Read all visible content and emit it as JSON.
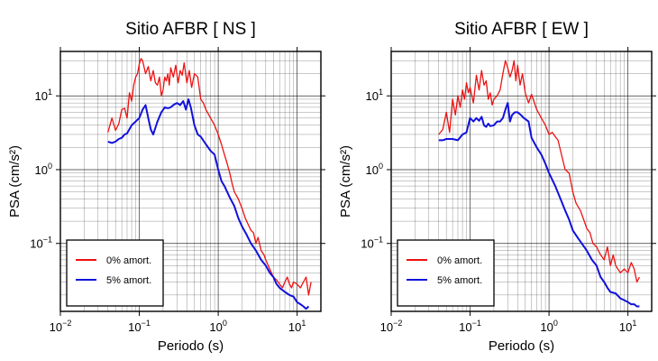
{
  "chart_data": [
    {
      "type": "line",
      "title": "Sitio AFBR [ NS ]",
      "xlabel": "Periodo (s)",
      "ylabel": "PSA (cm/s²)",
      "xscale": "log",
      "yscale": "log",
      "xlim": [
        0.01,
        20
      ],
      "ylim": [
        0.012,
        40
      ],
      "xticks": [
        {
          "base": "10",
          "exp": "−2",
          "value": 0.01
        },
        {
          "base": "10",
          "exp": "−1",
          "value": 0.1
        },
        {
          "base": "10",
          "exp": "0",
          "value": 1
        },
        {
          "base": "10",
          "exp": "1",
          "value": 10
        }
      ],
      "yticks": [
        {
          "base": "10",
          "exp": "−1",
          "value": 0.1
        },
        {
          "base": "10",
          "exp": "0",
          "value": 1
        },
        {
          "base": "10",
          "exp": "1",
          "value": 10
        }
      ],
      "grid": true,
      "legend_position": "bottom-left",
      "series": [
        {
          "name": "0% amort.",
          "color": "#ee1111",
          "x": [
            0.04,
            0.045,
            0.05,
            0.055,
            0.06,
            0.065,
            0.07,
            0.075,
            0.08,
            0.085,
            0.09,
            0.095,
            0.1,
            0.105,
            0.11,
            0.12,
            0.13,
            0.14,
            0.15,
            0.16,
            0.17,
            0.18,
            0.19,
            0.2,
            0.21,
            0.22,
            0.23,
            0.24,
            0.25,
            0.27,
            0.29,
            0.31,
            0.33,
            0.35,
            0.37,
            0.4,
            0.43,
            0.46,
            0.5,
            0.55,
            0.6,
            0.65,
            0.7,
            0.8,
            0.9,
            1.0,
            1.1,
            1.2,
            1.3,
            1.4,
            1.5,
            1.6,
            1.8,
            2.0,
            2.2,
            2.4,
            2.6,
            2.8,
            3.0,
            3.2,
            3.5,
            3.8,
            4.0,
            4.5,
            5.0,
            5.5,
            6.0,
            6.5,
            7.0,
            7.5,
            8.0,
            8.5,
            9.0,
            10,
            11,
            12,
            13,
            14,
            15
          ],
          "y": [
            3.2,
            5.0,
            3.4,
            4.2,
            6.5,
            6.8,
            5.0,
            11,
            8.5,
            14,
            18,
            20,
            27,
            32,
            30,
            20,
            25,
            16,
            22,
            15,
            14,
            18,
            10,
            12,
            18,
            16,
            20,
            14,
            24,
            18,
            26,
            15,
            22,
            19,
            28,
            15,
            22,
            13,
            20,
            18,
            9,
            8,
            6.5,
            5.0,
            4.0,
            3.0,
            2.2,
            1.6,
            1.2,
            0.9,
            0.65,
            0.5,
            0.4,
            0.3,
            0.22,
            0.18,
            0.15,
            0.14,
            0.1,
            0.12,
            0.08,
            0.07,
            0.06,
            0.045,
            0.035,
            0.032,
            0.028,
            0.025,
            0.03,
            0.035,
            0.028,
            0.025,
            0.03,
            0.028,
            0.025,
            0.03,
            0.035,
            0.02,
            0.03
          ]
        },
        {
          "name": "5% amort.",
          "color": "#1111dd",
          "x": [
            0.04,
            0.045,
            0.05,
            0.055,
            0.06,
            0.065,
            0.07,
            0.08,
            0.09,
            0.1,
            0.11,
            0.12,
            0.13,
            0.14,
            0.15,
            0.17,
            0.19,
            0.21,
            0.23,
            0.25,
            0.27,
            0.3,
            0.33,
            0.36,
            0.39,
            0.42,
            0.45,
            0.5,
            0.55,
            0.6,
            0.7,
            0.8,
            0.9,
            1.0,
            1.1,
            1.2,
            1.4,
            1.6,
            1.8,
            2.0,
            2.3,
            2.6,
            3.0,
            3.5,
            4.0,
            4.5,
            5.0,
            5.5,
            6.0,
            7.0,
            8.0,
            9.0,
            10,
            11,
            12,
            13,
            14
          ],
          "y": [
            2.4,
            2.3,
            2.4,
            2.6,
            2.7,
            3.0,
            3.1,
            4.0,
            4.5,
            5.0,
            6.5,
            7.5,
            5.0,
            3.5,
            3.0,
            4.5,
            6.0,
            7.0,
            6.8,
            7.0,
            7.5,
            8.0,
            7.5,
            8.5,
            6.5,
            9.0,
            7.0,
            4.0,
            3.0,
            2.8,
            2.2,
            1.8,
            1.6,
            1.0,
            0.7,
            0.6,
            0.42,
            0.32,
            0.22,
            0.17,
            0.13,
            0.1,
            0.08,
            0.06,
            0.05,
            0.04,
            0.035,
            0.028,
            0.025,
            0.022,
            0.02,
            0.019,
            0.016,
            0.015,
            0.014,
            0.013,
            0.014
          ]
        }
      ]
    },
    {
      "type": "line",
      "title": "Sitio AFBR [ EW ]",
      "xlabel": "Periodo (s)",
      "ylabel": "PSA (cm/s²)",
      "xscale": "log",
      "yscale": "log",
      "xlim": [
        0.01,
        20
      ],
      "ylim": [
        0.012,
        40
      ],
      "xticks": [
        {
          "base": "10",
          "exp": "−2",
          "value": 0.01
        },
        {
          "base": "10",
          "exp": "−1",
          "value": 0.1
        },
        {
          "base": "10",
          "exp": "0",
          "value": 1
        },
        {
          "base": "10",
          "exp": "1",
          "value": 10
        }
      ],
      "yticks": [
        {
          "base": "10",
          "exp": "−1",
          "value": 0.1
        },
        {
          "base": "10",
          "exp": "0",
          "value": 1
        },
        {
          "base": "10",
          "exp": "1",
          "value": 10
        }
      ],
      "grid": true,
      "legend_position": "bottom-left",
      "series": [
        {
          "name": "0% amort.",
          "color": "#ee1111",
          "x": [
            0.04,
            0.045,
            0.05,
            0.055,
            0.06,
            0.065,
            0.07,
            0.075,
            0.08,
            0.085,
            0.09,
            0.095,
            0.1,
            0.11,
            0.12,
            0.13,
            0.14,
            0.15,
            0.16,
            0.17,
            0.18,
            0.19,
            0.2,
            0.22,
            0.24,
            0.26,
            0.28,
            0.3,
            0.32,
            0.34,
            0.36,
            0.38,
            0.4,
            0.43,
            0.46,
            0.5,
            0.55,
            0.6,
            0.7,
            0.8,
            0.9,
            1.0,
            1.1,
            1.2,
            1.3,
            1.4,
            1.6,
            1.8,
            2.0,
            2.2,
            2.5,
            2.8,
            3.0,
            3.3,
            3.6,
            4.0,
            4.5,
            5.0,
            5.5,
            6.0,
            6.5,
            7.0,
            8.0,
            9.0,
            10,
            11,
            12,
            13,
            14
          ],
          "y": [
            3.0,
            3.5,
            6.0,
            3.2,
            9.0,
            5.5,
            10,
            7.0,
            12,
            9.0,
            15,
            11,
            13,
            8,
            19,
            12,
            22,
            14,
            16,
            9,
            11,
            7.5,
            9,
            10,
            12,
            20,
            30,
            24,
            18,
            22,
            30,
            16,
            26,
            14,
            20,
            11,
            8.0,
            10.5,
            6.5,
            5.0,
            4.0,
            3.0,
            3.2,
            2.8,
            2.5,
            1.8,
            1.0,
            0.9,
            0.5,
            0.35,
            0.28,
            0.2,
            0.16,
            0.14,
            0.1,
            0.09,
            0.07,
            0.06,
            0.09,
            0.05,
            0.07,
            0.05,
            0.04,
            0.045,
            0.04,
            0.055,
            0.045,
            0.03,
            0.035
          ]
        },
        {
          "name": "5% amort.",
          "color": "#1111dd",
          "x": [
            0.04,
            0.045,
            0.05,
            0.06,
            0.07,
            0.08,
            0.09,
            0.1,
            0.11,
            0.12,
            0.13,
            0.14,
            0.15,
            0.16,
            0.17,
            0.18,
            0.2,
            0.22,
            0.24,
            0.26,
            0.28,
            0.3,
            0.32,
            0.34,
            0.37,
            0.4,
            0.44,
            0.48,
            0.55,
            0.6,
            0.7,
            0.8,
            0.9,
            1.0,
            1.2,
            1.4,
            1.6,
            1.8,
            2.0,
            2.3,
            2.6,
            3.0,
            3.5,
            4.0,
            4.5,
            5.0,
            5.5,
            6.0,
            7.0,
            8.0,
            9.0,
            10,
            11,
            12,
            13,
            14
          ],
          "y": [
            2.5,
            2.5,
            2.6,
            2.6,
            2.5,
            3.0,
            3.2,
            5.0,
            4.5,
            5.0,
            4.6,
            5.2,
            4.0,
            3.8,
            4.2,
            3.9,
            4.0,
            4.5,
            4.5,
            5.0,
            6.5,
            8.0,
            4.5,
            5.5,
            6.0,
            6.0,
            5.5,
            5.0,
            4.5,
            2.7,
            2.0,
            1.6,
            1.2,
            0.9,
            0.6,
            0.4,
            0.28,
            0.21,
            0.15,
            0.12,
            0.1,
            0.08,
            0.06,
            0.05,
            0.035,
            0.03,
            0.025,
            0.022,
            0.021,
            0.018,
            0.017,
            0.016,
            0.015,
            0.015,
            0.014,
            0.014
          ]
        }
      ]
    }
  ]
}
